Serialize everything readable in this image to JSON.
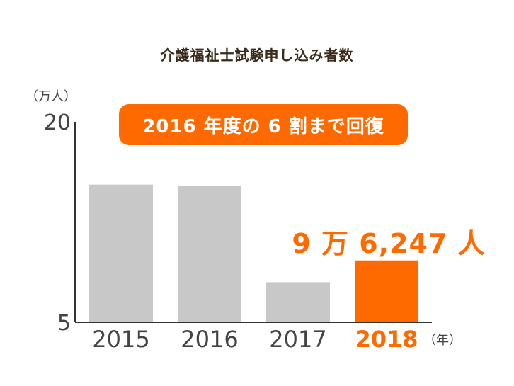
{
  "chart_data": {
    "type": "bar",
    "title": "介護福祉士試験申し込み者数",
    "y_unit": "（万人）",
    "x_unit": "（年）",
    "categories": [
      "2015",
      "2016",
      "2017",
      "2018"
    ],
    "values": [
      15.3,
      15.2,
      8.0,
      9.6247
    ],
    "y_ticks": [
      "20",
      "5"
    ],
    "ylim": [
      5,
      20
    ],
    "annotation": "2016 年度の 6 割まで回復",
    "highlight_label": "9 万 6,247 人",
    "highlight_index": 3,
    "colors": {
      "bar": "#c8c8c8",
      "highlight": "#ff6a00",
      "axis": "#333333",
      "tick_text": "#444444"
    }
  }
}
